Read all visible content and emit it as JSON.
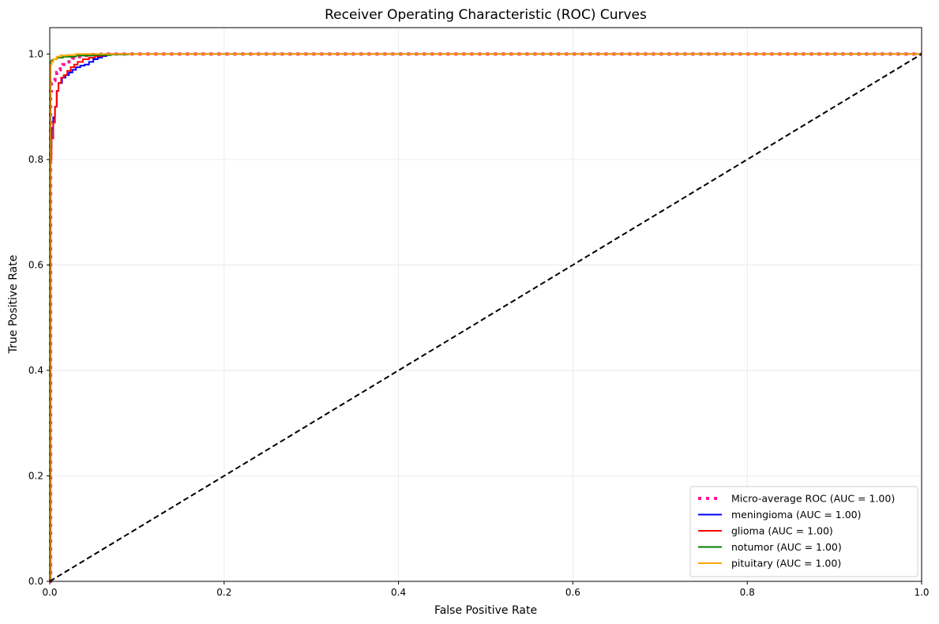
{
  "chart_data": {
    "type": "line",
    "title": "Receiver Operating Characteristic (ROC) Curves",
    "xlabel": "False Positive Rate",
    "ylabel": "True Positive Rate",
    "xlim": [
      0,
      1
    ],
    "ylim": [
      0,
      1.05
    ],
    "xticks": [
      "0.0",
      "0.2",
      "0.4",
      "0.6",
      "0.8",
      "1.0"
    ],
    "yticks": [
      "0.0",
      "0.2",
      "0.4",
      "0.6",
      "0.8",
      "1.0"
    ],
    "grid": true,
    "legend_position": "lower-right",
    "series": [
      {
        "name": "Micro-average ROC (AUC = 1.00)",
        "color": "#ff1493",
        "style": "dotted",
        "x": [
          0,
          0.001,
          0.001,
          0.002,
          0.002,
          0.004,
          0.006,
          0.008,
          0.01,
          0.012,
          0.015,
          0.018,
          0.022,
          0.026,
          0.03,
          0.036,
          0.045,
          0.06,
          0.08,
          0.1,
          0.2,
          0.4,
          0.6,
          0.8,
          1.0
        ],
        "y": [
          0,
          0.9,
          0.93,
          0.94,
          0.945,
          0.95,
          0.96,
          0.965,
          0.97,
          0.975,
          0.98,
          0.985,
          0.99,
          0.992,
          0.995,
          0.997,
          0.999,
          1.0,
          1.0,
          1.0,
          1.0,
          1.0,
          1.0,
          1.0,
          1.0
        ]
      },
      {
        "name": "meningioma (AUC = 1.00)",
        "color": "#0000ff",
        "style": "solid",
        "x": [
          0,
          0.001,
          0.002,
          0.004,
          0.006,
          0.008,
          0.01,
          0.014,
          0.018,
          0.022,
          0.026,
          0.03,
          0.035,
          0.04,
          0.045,
          0.05,
          0.055,
          0.06,
          0.065,
          0.1,
          0.2,
          0.4,
          0.6,
          0.8,
          1.0
        ],
        "y": [
          0,
          0.82,
          0.86,
          0.88,
          0.9,
          0.93,
          0.945,
          0.955,
          0.96,
          0.965,
          0.97,
          0.975,
          0.978,
          0.98,
          0.985,
          0.99,
          0.993,
          0.996,
          1.0,
          1.0,
          1.0,
          1.0,
          1.0,
          1.0,
          1.0
        ]
      },
      {
        "name": "glioma (AUC = 1.00)",
        "color": "#ff0000",
        "style": "solid",
        "x": [
          0,
          0.001,
          0.002,
          0.004,
          0.006,
          0.008,
          0.01,
          0.013,
          0.016,
          0.02,
          0.024,
          0.028,
          0.032,
          0.038,
          0.045,
          0.052,
          0.06,
          0.065,
          0.1,
          0.2,
          0.4,
          0.6,
          0.8,
          1.0
        ],
        "y": [
          0,
          0.8,
          0.84,
          0.87,
          0.9,
          0.93,
          0.945,
          0.955,
          0.96,
          0.968,
          0.975,
          0.98,
          0.985,
          0.99,
          0.993,
          0.996,
          0.998,
          1.0,
          1.0,
          1.0,
          1.0,
          1.0,
          1.0,
          1.0
        ]
      },
      {
        "name": "notumor (AUC = 1.00)",
        "color": "#008000",
        "style": "solid",
        "x": [
          0,
          0.001,
          0.002,
          0.004,
          0.008,
          0.015,
          0.03,
          0.05,
          0.07,
          0.09,
          0.2,
          0.4,
          0.6,
          0.8,
          1.0
        ],
        "y": [
          0,
          0.985,
          0.988,
          0.99,
          0.993,
          0.995,
          0.997,
          0.998,
          0.999,
          1.0,
          1.0,
          1.0,
          1.0,
          1.0,
          1.0
        ]
      },
      {
        "name": "pituitary (AUC = 1.00)",
        "color": "#ffa500",
        "style": "solid",
        "x": [
          0,
          0.001,
          0.002,
          0.004,
          0.008,
          0.012,
          0.02,
          0.03,
          0.2,
          0.4,
          0.6,
          0.8,
          1.0
        ],
        "y": [
          0,
          0.98,
          0.985,
          0.99,
          0.995,
          0.997,
          0.998,
          1.0,
          1.0,
          1.0,
          1.0,
          1.0,
          1.0
        ]
      }
    ],
    "reference_line": {
      "color": "#000000",
      "style": "dashed",
      "x": [
        0,
        1
      ],
      "y": [
        0,
        1
      ]
    }
  }
}
